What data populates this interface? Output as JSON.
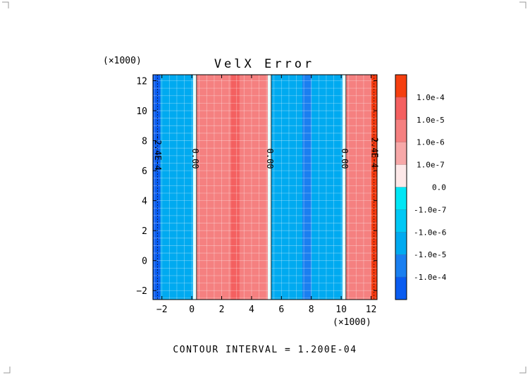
{
  "chart_data": {
    "type": "heatmap",
    "title": "VelX Error",
    "x_multiplier": "(×1000)",
    "y_multiplier": "(×1000)",
    "xlim": [
      -2.6,
      12.4
    ],
    "ylim": [
      -2.6,
      12.4
    ],
    "x_ticks": [
      "-2",
      "0",
      "2",
      "4",
      "6",
      "8",
      "10",
      "12"
    ],
    "y_ticks": [
      "-2",
      "0",
      "2",
      "4",
      "6",
      "8",
      "10",
      "12"
    ],
    "grid": true,
    "bands": [
      {
        "x0": -2.6,
        "x1": -2.1,
        "color": "#0a5cf0"
      },
      {
        "x0": -2.1,
        "x1": 0.2,
        "color": "#00aaf0"
      },
      {
        "x0": 0.2,
        "x1": 2.6,
        "color": "#f58080"
      },
      {
        "x0": 2.6,
        "x1": 3.2,
        "color": "#f46060"
      },
      {
        "x0": 3.2,
        "x1": 5.2,
        "color": "#f58080"
      },
      {
        "x0": 5.2,
        "x1": 7.4,
        "color": "#00aaf0"
      },
      {
        "x0": 7.4,
        "x1": 8.0,
        "color": "#1a7ff0"
      },
      {
        "x0": 8.0,
        "x1": 10.2,
        "color": "#00aaf0"
      },
      {
        "x0": 10.2,
        "x1": 12.0,
        "color": "#f58080"
      },
      {
        "x0": 12.0,
        "x1": 12.4,
        "color": "#f43a10"
      }
    ],
    "zero_lines_x": [
      0.2,
      5.2,
      10.2
    ],
    "contour_labels": [
      {
        "x": 0.2,
        "y": 6.8,
        "text": "0.00"
      },
      {
        "x": 5.2,
        "y": 6.8,
        "text": "0.00"
      },
      {
        "x": 10.2,
        "y": 6.8,
        "text": "0.00"
      },
      {
        "x": -2.3,
        "y": 7.2,
        "text": "-2.4E-4"
      },
      {
        "x": 12.2,
        "y": 7.2,
        "text": "2.4E-4"
      }
    ],
    "colorbar": {
      "levels": [
        {
          "color": "#f53f10",
          "label": ""
        },
        {
          "color": "#f46060",
          "label": "1.0e-4"
        },
        {
          "color": "#f58080",
          "label": "1.0e-5"
        },
        {
          "color": "#f7a8a8",
          "label": "1.0e-6"
        },
        {
          "color": "#fde8e8",
          "label": "1.0e-7"
        },
        {
          "color": "#00e6f5",
          "label": "0.0"
        },
        {
          "color": "#00c8f5",
          "label": "-1.0e-7"
        },
        {
          "color": "#00aaf0",
          "label": "-1.0e-6"
        },
        {
          "color": "#1a7ff0",
          "label": "-1.0e-5"
        },
        {
          "color": "#0a5cf0",
          "label": "-1.0e-4"
        }
      ]
    },
    "footer": "CONTOUR INTERVAL = 1.200E-04"
  }
}
